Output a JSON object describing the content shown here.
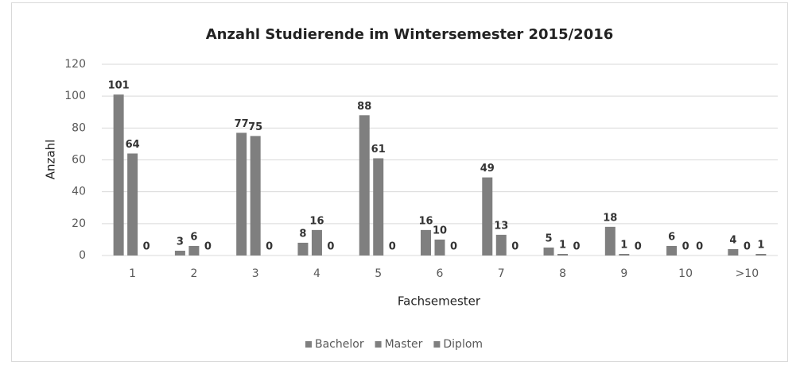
{
  "chart_data": {
    "type": "bar",
    "title": "Anzahl Studierende im Wintersemester 2015/2016",
    "x_label": "Fachsemester",
    "y_label": "Anzahl",
    "categories": [
      "1",
      "2",
      "3",
      "4",
      "5",
      "6",
      "7",
      "8",
      "9",
      "10",
      ">10"
    ],
    "series": [
      {
        "name": "Bachelor",
        "color": "#7f7f7f",
        "values": [
          101,
          3,
          77,
          8,
          88,
          16,
          49,
          5,
          18,
          6,
          4
        ]
      },
      {
        "name": "Master",
        "color": "#7f7f7f",
        "values": [
          64,
          6,
          75,
          16,
          61,
          10,
          13,
          1,
          1,
          0,
          0
        ]
      },
      {
        "name": "Diplom",
        "color": "#7f7f7f",
        "values": [
          0,
          0,
          0,
          0,
          0,
          0,
          0,
          0,
          0,
          0,
          1
        ]
      }
    ],
    "ylim": [
      0,
      120
    ],
    "yticks": [
      0,
      20,
      40,
      60,
      80,
      100,
      120
    ],
    "grid": true,
    "legend": "bottom"
  }
}
